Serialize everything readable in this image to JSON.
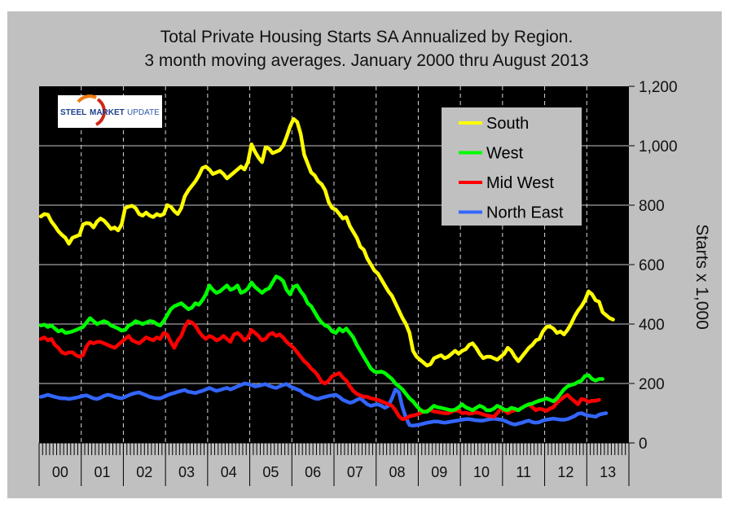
{
  "chart_data": {
    "type": "line",
    "title": "Total Private Housing Starts SA Annualized by Region.",
    "subtitle": "3 month moving averages. January 2000 thru August 2013",
    "xlabel": "",
    "ylabel": "Starts x 1,000",
    "ylim": [
      0,
      1200
    ],
    "yticks": [
      0,
      200,
      400,
      600,
      800,
      1000,
      1200
    ],
    "ytick_labels": [
      "0",
      "200",
      "400",
      "600",
      "800",
      "1,000",
      "1,200"
    ],
    "x_start": "2000-01",
    "x_end": "2013-08",
    "x_axis_years": 14,
    "categories": [
      "00",
      "01",
      "02",
      "03",
      "04",
      "05",
      "06",
      "07",
      "08",
      "09",
      "10",
      "11",
      "12",
      "13"
    ],
    "grid": {
      "horizontal": true,
      "vertical_dashed": true
    },
    "legend": {
      "position": "top-right",
      "entries": [
        "South",
        "West",
        "Mid West",
        "North East"
      ]
    },
    "series": [
      {
        "name": "South",
        "color": "#ffff00",
        "values": [
          762,
          770,
          768,
          745,
          730,
          712,
          700,
          690,
          670,
          690,
          695,
          700,
          735,
          740,
          738,
          725,
          745,
          755,
          748,
          735,
          720,
          725,
          715,
          735,
          790,
          795,
          798,
          790,
          770,
          765,
          775,
          765,
          760,
          770,
          765,
          770,
          800,
          795,
          780,
          770,
          790,
          830,
          850,
          865,
          880,
          900,
          925,
          930,
          920,
          905,
          910,
          915,
          905,
          890,
          900,
          910,
          920,
          930,
          920,
          945,
          1005,
          980,
          960,
          945,
          995,
          990,
          975,
          980,
          985,
          1000,
          1030,
          1065,
          1090,
          1080,
          1040,
          970,
          940,
          910,
          900,
          880,
          870,
          850,
          810,
          790,
          785,
          770,
          755,
          760,
          730,
          710,
          690,
          660,
          650,
          620,
          600,
          580,
          570,
          550,
          530,
          510,
          495,
          470,
          445,
          420,
          400,
          370,
          310,
          290,
          280,
          270,
          260,
          265,
          285,
          290,
          295,
          285,
          290,
          300,
          310,
          300,
          310,
          315,
          330,
          335,
          320,
          300,
          285,
          290,
          290,
          285,
          280,
          290,
          300,
          320,
          310,
          290,
          275,
          290,
          305,
          320,
          330,
          345,
          350,
          375,
          390,
          392,
          385,
          370,
          375,
          365,
          380,
          400,
          425,
          445,
          460,
          480,
          510,
          500,
          480,
          475,
          440,
          430,
          420,
          415
        ]
      },
      {
        "name": "West",
        "color": "#00ff00",
        "values": [
          395,
          398,
          390,
          395,
          385,
          375,
          380,
          370,
          372,
          375,
          380,
          385,
          390,
          405,
          420,
          410,
          400,
          405,
          410,
          405,
          395,
          390,
          385,
          378,
          380,
          395,
          400,
          410,
          405,
          400,
          405,
          410,
          408,
          400,
          395,
          410,
          430,
          450,
          460,
          465,
          470,
          460,
          450,
          455,
          470,
          465,
          480,
          500,
          530,
          515,
          505,
          510,
          520,
          530,
          515,
          520,
          530,
          505,
          510,
          520,
          540,
          525,
          515,
          505,
          515,
          520,
          540,
          560,
          555,
          545,
          515,
          500,
          525,
          530,
          510,
          495,
          470,
          460,
          440,
          420,
          405,
          395,
          390,
          375,
          370,
          385,
          375,
          385,
          370,
          355,
          330,
          310,
          290,
          270,
          250,
          240,
          238,
          240,
          235,
          225,
          215,
          200,
          190,
          180,
          165,
          150,
          140,
          125,
          112,
          105,
          105,
          115,
          125,
          120,
          118,
          115,
          112,
          110,
          112,
          120,
          130,
          120,
          115,
          110,
          118,
          125,
          120,
          110,
          110,
          115,
          125,
          120,
          112,
          110,
          118,
          115,
          110,
          118,
          125,
          130,
          132,
          138,
          142,
          145,
          150,
          145,
          140,
          150,
          165,
          180,
          190,
          195,
          198,
          205,
          210,
          225,
          228,
          215,
          210,
          215,
          215
        ]
      },
      {
        "name": "Mid West",
        "color": "#ff0000",
        "values": [
          350,
          355,
          345,
          350,
          330,
          320,
          305,
          300,
          305,
          305,
          295,
          290,
          295,
          325,
          340,
          335,
          340,
          340,
          335,
          330,
          325,
          320,
          330,
          340,
          350,
          360,
          345,
          340,
          335,
          345,
          355,
          350,
          345,
          355,
          350,
          370,
          365,
          340,
          320,
          345,
          360,
          390,
          410,
          405,
          395,
          375,
          360,
          350,
          360,
          355,
          345,
          350,
          360,
          350,
          340,
          365,
          370,
          360,
          345,
          355,
          380,
          370,
          360,
          345,
          350,
          365,
          370,
          360,
          365,
          355,
          340,
          330,
          320,
          305,
          290,
          275,
          265,
          250,
          240,
          225,
          205,
          200,
          210,
          225,
          230,
          235,
          220,
          210,
          190,
          175,
          165,
          160,
          155,
          155,
          150,
          148,
          145,
          140,
          135,
          130,
          125,
          110,
          90,
          80,
          82,
          90,
          92,
          95,
          100,
          105,
          108,
          110,
          106,
          104,
          102,
          100,
          100,
          105,
          110,
          108,
          100,
          102,
          98,
          100,
          103,
          100,
          96,
          92,
          90,
          88,
          100,
          115,
          110,
          100,
          106,
          110,
          112,
          118,
          125,
          130,
          120,
          110,
          115,
          112,
          108,
          115,
          120,
          135,
          145,
          155,
          162,
          150,
          140,
          130,
          148,
          145,
          138,
          142,
          142,
          145
        ]
      },
      {
        "name": "North East",
        "color": "#3366ff",
        "values": [
          155,
          158,
          162,
          158,
          155,
          152,
          150,
          150,
          148,
          150,
          152,
          155,
          158,
          160,
          155,
          150,
          148,
          152,
          158,
          162,
          160,
          155,
          152,
          150,
          155,
          160,
          165,
          168,
          170,
          165,
          160,
          155,
          152,
          150,
          150,
          155,
          160,
          165,
          168,
          172,
          175,
          178,
          172,
          170,
          168,
          172,
          175,
          180,
          185,
          180,
          175,
          178,
          182,
          185,
          180,
          185,
          190,
          195,
          200,
          198,
          195,
          190,
          192,
          195,
          198,
          192,
          188,
          185,
          190,
          195,
          198,
          190,
          185,
          180,
          175,
          165,
          160,
          155,
          150,
          148,
          152,
          155,
          158,
          160,
          162,
          155,
          145,
          140,
          135,
          138,
          145,
          150,
          140,
          130,
          125,
          128,
          130,
          125,
          118,
          125,
          150,
          180,
          170,
          120,
          85,
          60,
          58,
          60,
          62,
          65,
          68,
          70,
          72,
          72,
          70,
          68,
          70,
          72,
          74,
          76,
          78,
          80,
          80,
          78,
          76,
          75,
          75,
          78,
          80,
          82,
          80,
          78,
          75,
          70,
          65,
          62,
          65,
          68,
          72,
          75,
          70,
          68,
          70,
          75,
          78,
          80,
          82,
          80,
          78,
          78,
          80,
          85,
          90,
          98,
          100,
          95,
          92,
          90,
          88,
          95,
          98,
          100
        ]
      }
    ]
  },
  "logo": {
    "word1": "STEEL",
    "word2": "MARKET",
    "word3": "UPDATE"
  }
}
